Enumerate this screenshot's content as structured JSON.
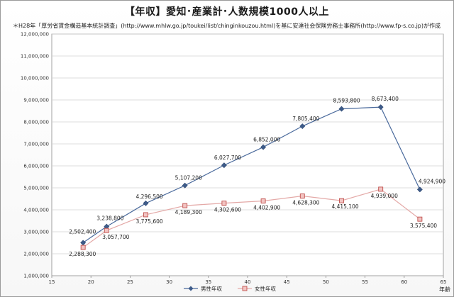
{
  "chart_data": {
    "type": "line",
    "title": "【年収】愛知･産業計･人数規模1000人以上",
    "subtitle": "＊H28年「厚労省賃金構造基本統計調査」(http://www.mhlw.go.jp/toukei/list/chinginkouzou.html)を基に安達社会保険労務士事務所(http://www.fp-s.co.jp)が作成",
    "xlabel": "年齢",
    "xlim": [
      15,
      65
    ],
    "xticks": [
      15,
      20,
      25,
      30,
      35,
      40,
      45,
      50,
      55,
      60,
      65
    ],
    "ylim": [
      1000000,
      12000000
    ],
    "yticks": [
      "1,000,000",
      "2,000,000",
      "3,000,000",
      "4,000,000",
      "5,000,000",
      "6,000,000",
      "7,000,000",
      "8,000,000",
      "9,000,000",
      "10,000,000",
      "11,000,000",
      "12,000,000"
    ],
    "grid": true,
    "legend_position": "bottom",
    "series": [
      {
        "name": "男性年収",
        "color": "#3e5c8a",
        "marker": "diamond",
        "x": [
          19,
          22,
          27,
          32,
          37,
          42,
          47,
          52,
          57,
          62
        ],
        "values": [
          2502400,
          3238800,
          4296500,
          5107200,
          6027700,
          6852000,
          7805400,
          8593800,
          8673400,
          4924900
        ],
        "labels": [
          "2,502,400",
          "3,238,800",
          "4,296,500",
          "5,107,200",
          "6,027,700",
          "6,852,000",
          "7,805,400",
          "8,593,800",
          "8,673,400",
          "4,924,900"
        ]
      },
      {
        "name": "女性年収",
        "color": "#c0504d",
        "marker": "square",
        "x": [
          19,
          22,
          27,
          32,
          37,
          42,
          47,
          52,
          57,
          62
        ],
        "values": [
          2288300,
          3057700,
          3775600,
          4189300,
          4302600,
          4402900,
          4628300,
          4415100,
          4939000,
          3575400
        ],
        "labels": [
          "2,288,300",
          "3,057,700",
          "3,775,600",
          "4,189,300",
          "4,302,600",
          "4,402,900",
          "4,628,300",
          "4,415,100",
          "4,939,000",
          "3,575,400"
        ]
      }
    ]
  }
}
